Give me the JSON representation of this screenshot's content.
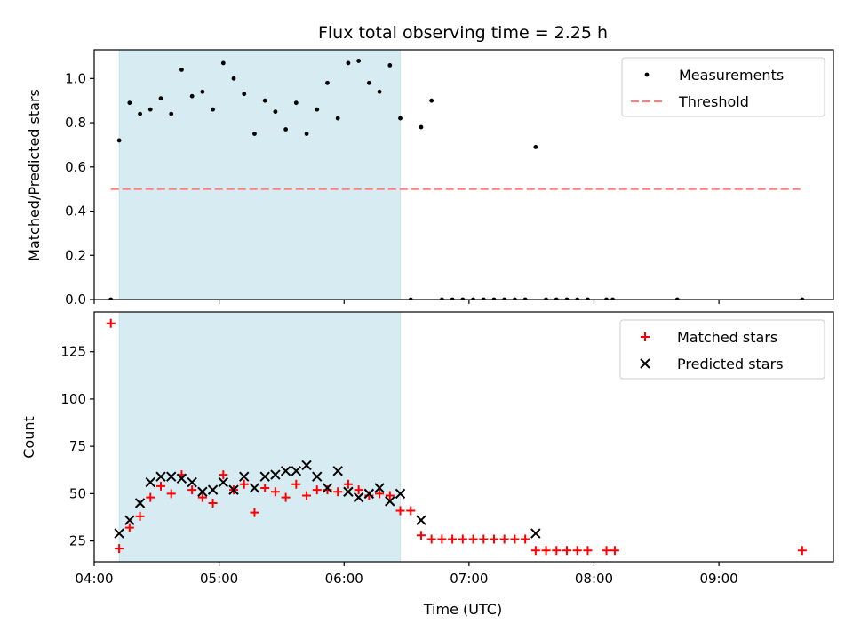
{
  "chart_data": [
    {
      "type": "scatter",
      "title": "Flux total observing time = 2.25 h",
      "xlabel": "",
      "ylabel": "Matched/Predicted stars",
      "xlim": [
        "04:00",
        "09:55"
      ],
      "ylim": [
        0,
        1.13
      ],
      "yticks": [
        {
          "value": 0.0,
          "label": "0.0"
        },
        {
          "value": 0.2,
          "label": "0.2"
        },
        {
          "value": 0.4,
          "label": "0.4"
        },
        {
          "value": 0.6,
          "label": "0.6"
        },
        {
          "value": 0.8,
          "label": "0.8"
        },
        {
          "value": 1.0,
          "label": "1.0"
        }
      ],
      "xticks": [
        "04:00",
        "05:00",
        "06:00",
        "07:00",
        "08:00",
        "09:00"
      ],
      "shaded_interval": {
        "start": "04:12",
        "end": "06:27",
        "color": "#add8e6"
      },
      "legend_position": "top-right",
      "grid": false,
      "series": [
        {
          "name": "Measurements",
          "marker": "dot",
          "color": "#000000",
          "points": [
            [
              "04:08",
              0.0
            ],
            [
              "04:12",
              0.72
            ],
            [
              "04:17",
              0.89
            ],
            [
              "04:22",
              0.84
            ],
            [
              "04:27",
              0.86
            ],
            [
              "04:32",
              0.91
            ],
            [
              "04:37",
              0.84
            ],
            [
              "04:42",
              1.04
            ],
            [
              "04:47",
              0.92
            ],
            [
              "04:52",
              0.94
            ],
            [
              "04:57",
              0.86
            ],
            [
              "05:02",
              1.07
            ],
            [
              "05:07",
              1.0
            ],
            [
              "05:12",
              0.93
            ],
            [
              "05:17",
              0.75
            ],
            [
              "05:22",
              0.9
            ],
            [
              "05:27",
              0.85
            ],
            [
              "05:32",
              0.77
            ],
            [
              "05:37",
              0.89
            ],
            [
              "05:42",
              0.75
            ],
            [
              "05:47",
              0.86
            ],
            [
              "05:52",
              0.98
            ],
            [
              "05:57",
              0.82
            ],
            [
              "06:02",
              1.07
            ],
            [
              "06:07",
              1.08
            ],
            [
              "06:12",
              0.98
            ],
            [
              "06:17",
              0.94
            ],
            [
              "06:22",
              1.06
            ],
            [
              "06:27",
              0.82
            ],
            [
              "06:32",
              0.0
            ],
            [
              "06:37",
              0.78
            ],
            [
              "06:42",
              0.9
            ],
            [
              "06:47",
              0.0
            ],
            [
              "06:52",
              0.0
            ],
            [
              "06:57",
              0.0
            ],
            [
              "07:02",
              0.0
            ],
            [
              "07:07",
              0.0
            ],
            [
              "07:12",
              0.0
            ],
            [
              "07:17",
              0.0
            ],
            [
              "07:22",
              0.0
            ],
            [
              "07:27",
              0.0
            ],
            [
              "07:32",
              0.69
            ],
            [
              "07:37",
              0.0
            ],
            [
              "07:42",
              0.0
            ],
            [
              "07:47",
              0.0
            ],
            [
              "07:52",
              0.0
            ],
            [
              "07:57",
              0.0
            ],
            [
              "08:06",
              0.0
            ],
            [
              "08:09",
              0.0
            ],
            [
              "08:40",
              0.0
            ],
            [
              "09:40",
              0.0
            ]
          ]
        },
        {
          "name": "Threshold",
          "marker": "dashed-line",
          "color": "#ff7f7f",
          "points": [
            [
              "04:08",
              0.5
            ],
            [
              "09:40",
              0.5
            ]
          ]
        }
      ]
    },
    {
      "type": "scatter",
      "title": "",
      "xlabel": "Time (UTC)",
      "ylabel": "Count",
      "xlim": [
        "04:00",
        "09:55"
      ],
      "ylim": [
        14,
        146
      ],
      "yticks": [
        {
          "value": 25,
          "label": "25"
        },
        {
          "value": 50,
          "label": "50"
        },
        {
          "value": 75,
          "label": "75"
        },
        {
          "value": 100,
          "label": "100"
        },
        {
          "value": 125,
          "label": "125"
        }
      ],
      "xticks": [
        "04:00",
        "05:00",
        "06:00",
        "07:00",
        "08:00",
        "09:00"
      ],
      "shaded_interval": {
        "start": "04:12",
        "end": "06:27",
        "color": "#add8e6"
      },
      "legend_position": "top-right",
      "grid": false,
      "series": [
        {
          "name": "Matched stars",
          "marker": "plus",
          "color": "#ff0000",
          "points": [
            [
              "04:08",
              140
            ],
            [
              "04:12",
              21
            ],
            [
              "04:17",
              32
            ],
            [
              "04:22",
              38
            ],
            [
              "04:27",
              48
            ],
            [
              "04:32",
              54
            ],
            [
              "04:37",
              50
            ],
            [
              "04:42",
              60
            ],
            [
              "04:47",
              52
            ],
            [
              "04:52",
              48
            ],
            [
              "04:57",
              45
            ],
            [
              "05:02",
              60
            ],
            [
              "05:07",
              52
            ],
            [
              "05:12",
              55
            ],
            [
              "05:17",
              40
            ],
            [
              "05:22",
              53
            ],
            [
              "05:27",
              51
            ],
            [
              "05:32",
              48
            ],
            [
              "05:37",
              55
            ],
            [
              "05:42",
              49
            ],
            [
              "05:47",
              52
            ],
            [
              "05:52",
              52
            ],
            [
              "05:57",
              51
            ],
            [
              "06:02",
              55
            ],
            [
              "06:07",
              52
            ],
            [
              "06:12",
              49
            ],
            [
              "06:17",
              50
            ],
            [
              "06:22",
              49
            ],
            [
              "06:27",
              41
            ],
            [
              "06:32",
              41
            ],
            [
              "06:37",
              28
            ],
            [
              "06:42",
              26
            ],
            [
              "06:47",
              26
            ],
            [
              "06:52",
              26
            ],
            [
              "06:57",
              26
            ],
            [
              "07:02",
              26
            ],
            [
              "07:07",
              26
            ],
            [
              "07:12",
              26
            ],
            [
              "07:17",
              26
            ],
            [
              "07:22",
              26
            ],
            [
              "07:27",
              26
            ],
            [
              "07:32",
              20
            ],
            [
              "07:37",
              20
            ],
            [
              "07:42",
              20
            ],
            [
              "07:47",
              20
            ],
            [
              "07:52",
              20
            ],
            [
              "07:57",
              20
            ],
            [
              "08:06",
              20
            ],
            [
              "08:10",
              20
            ],
            [
              "09:40",
              20
            ]
          ]
        },
        {
          "name": "Predicted stars",
          "marker": "x",
          "color": "#000000",
          "points": [
            [
              "04:12",
              29
            ],
            [
              "04:17",
              36
            ],
            [
              "04:22",
              45
            ],
            [
              "04:27",
              56
            ],
            [
              "04:32",
              59
            ],
            [
              "04:37",
              59
            ],
            [
              "04:42",
              58
            ],
            [
              "04:47",
              56
            ],
            [
              "04:52",
              51
            ],
            [
              "04:57",
              52
            ],
            [
              "05:02",
              56
            ],
            [
              "05:07",
              52
            ],
            [
              "05:12",
              59
            ],
            [
              "05:17",
              53
            ],
            [
              "05:22",
              59
            ],
            [
              "05:27",
              60
            ],
            [
              "05:32",
              62
            ],
            [
              "05:37",
              62
            ],
            [
              "05:42",
              65
            ],
            [
              "05:47",
              59
            ],
            [
              "05:52",
              53
            ],
            [
              "05:57",
              62
            ],
            [
              "06:02",
              51
            ],
            [
              "06:07",
              48
            ],
            [
              "06:12",
              50
            ],
            [
              "06:17",
              53
            ],
            [
              "06:22",
              46
            ],
            [
              "06:27",
              50
            ],
            [
              "06:37",
              36
            ],
            [
              "07:32",
              29
            ]
          ]
        }
      ]
    }
  ]
}
